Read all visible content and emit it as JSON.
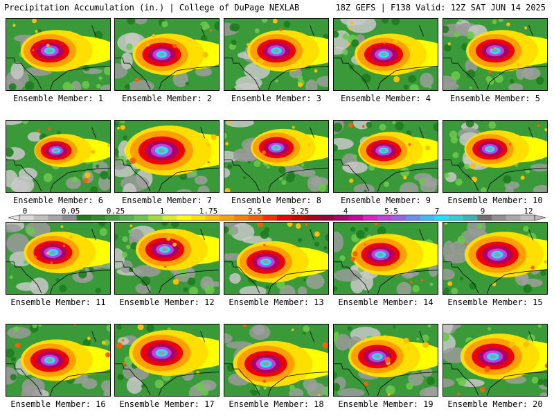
{
  "header": {
    "title_left": "Precipitation Accumulation (in.) | College of DuPage NEXLAB",
    "title_right": "18Z GEFS | F138 Valid: 12Z SAT JUN 14 2025"
  },
  "panels": [
    {
      "label": "Ensemble Member: 1"
    },
    {
      "label": "Ensemble Member: 2"
    },
    {
      "label": "Ensemble Member: 3"
    },
    {
      "label": "Ensemble Member: 4"
    },
    {
      "label": "Ensemble Member: 5"
    },
    {
      "label": "Ensemble Member: 6"
    },
    {
      "label": "Ensemble Member: 7"
    },
    {
      "label": "Ensemble Member: 8"
    },
    {
      "label": "Ensemble Member: 9"
    },
    {
      "label": "Ensemble Member: 10"
    },
    {
      "label": "Ensemble Member: 11"
    },
    {
      "label": "Ensemble Member: 12"
    },
    {
      "label": "Ensemble Member: 13"
    },
    {
      "label": "Ensemble Member: 14"
    },
    {
      "label": "Ensemble Member: 15"
    },
    {
      "label": "Ensemble Member: 16"
    },
    {
      "label": "Ensemble Member: 17"
    },
    {
      "label": "Ensemble Member: 18"
    },
    {
      "label": "Ensemble Member: 19"
    },
    {
      "label": "Ensemble Member: 20"
    }
  ],
  "colorbar": {
    "labels": [
      "0",
      "0.05",
      "0.25",
      "1",
      "1.75",
      "2.5",
      "3.25",
      "4",
      "5.5",
      "7",
      "9",
      "12"
    ],
    "colors": [
      "#d9d9d9",
      "#bfbfbf",
      "#a6a6a6",
      "#8c8c8c",
      "#1e7d1e",
      "#2e8b2e",
      "#3ea03e",
      "#52b452",
      "#6cc84c",
      "#9fdc3c",
      "#d4ec2c",
      "#ffff00",
      "#ffdf00",
      "#ffbf00",
      "#ff9f00",
      "#ff7f00",
      "#ff5f00",
      "#ff2f00",
      "#ee0000",
      "#cc0000",
      "#aa0022",
      "#99003a",
      "#aa0066",
      "#cc0099",
      "#e020c0",
      "#c040e0",
      "#9a60f0",
      "#6a8cff",
      "#40b8ff",
      "#22e0ff",
      "#30d0d0",
      "#40b0b0",
      "#707070",
      "#909090",
      "#a8a8a8",
      "#c0c0c0"
    ]
  }
}
